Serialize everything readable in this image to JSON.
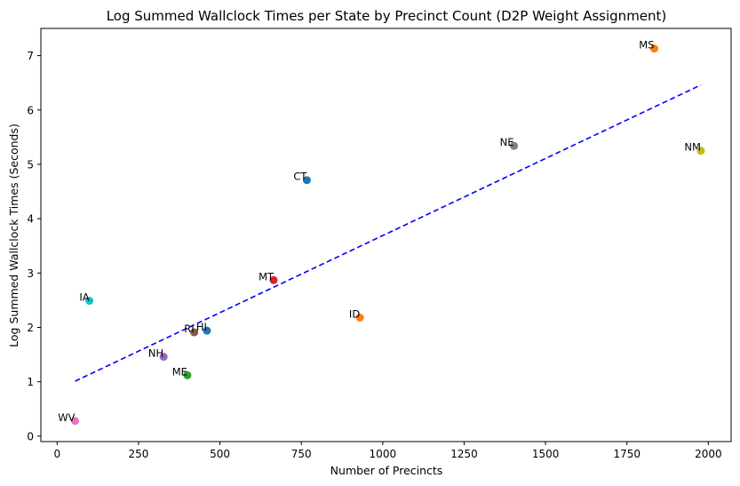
{
  "chart_data": {
    "type": "scatter",
    "title": "Log Summed Wallclock Times per State by Precinct Count (D2P Weight Assignment)",
    "xlabel": "Number of Precincts",
    "ylabel": "Log Summed Wallclock Times (Seconds)",
    "xlim": [
      -50,
      2070
    ],
    "ylim": [
      -0.1,
      7.5
    ],
    "xticks": [
      0,
      250,
      500,
      750,
      1000,
      1250,
      1500,
      1750,
      2000
    ],
    "yticks": [
      0,
      1,
      2,
      3,
      4,
      5,
      6,
      7
    ],
    "grid": false,
    "points": [
      {
        "label": "MS",
        "x": 1834,
        "y": 7.13,
        "color": "#ff7f0e"
      },
      {
        "label": "NE",
        "x": 1403,
        "y": 5.34,
        "color": "#7f7f7f"
      },
      {
        "label": "NM",
        "x": 1977,
        "y": 5.25,
        "color": "#bcbd22"
      },
      {
        "label": "CT",
        "x": 767,
        "y": 4.71,
        "color": "#1f77b4"
      },
      {
        "label": "MT",
        "x": 665,
        "y": 2.87,
        "color": "#d62728"
      },
      {
        "label": "IA",
        "x": 99,
        "y": 2.49,
        "color": "#17becf"
      },
      {
        "label": "ID",
        "x": 930,
        "y": 2.18,
        "color": "#ff7f0e"
      },
      {
        "label": "RI",
        "x": 421,
        "y": 1.91,
        "color": "#8c564b"
      },
      {
        "label": "HI",
        "x": 460,
        "y": 1.94,
        "color": "#1f77b4"
      },
      {
        "label": "NH",
        "x": 327,
        "y": 1.46,
        "color": "#9467bd"
      },
      {
        "label": "ME",
        "x": 400,
        "y": 1.12,
        "color": "#2ca02c"
      },
      {
        "label": "WV",
        "x": 55,
        "y": 0.28,
        "color": "#e377c2"
      }
    ],
    "trendline": {
      "style": "dashed",
      "color": "#0000ff",
      "x": [
        55,
        1977
      ],
      "y": [
        1.01,
        6.46
      ]
    }
  }
}
